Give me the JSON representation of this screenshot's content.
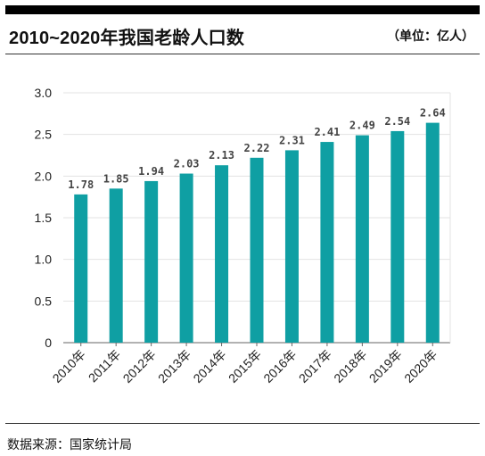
{
  "header": {
    "title": "2010~2020年我国老龄人口数",
    "unit": "（单位：亿人）"
  },
  "footer": {
    "source": "数据来源：国家统计局"
  },
  "colors": {
    "bar": "#0f9fa3",
    "grid": "#e3e3e3",
    "axis": "#666666"
  },
  "chart_data": {
    "type": "bar",
    "categories": [
      "2010年",
      "2011年",
      "2012年",
      "2013年",
      "2014年",
      "2015年",
      "2016年",
      "2017年",
      "2018年",
      "2019年",
      "2020年"
    ],
    "values": [
      1.78,
      1.85,
      1.94,
      2.03,
      2.13,
      2.22,
      2.31,
      2.41,
      2.49,
      2.54,
      2.64
    ],
    "title": "2010~2020年我国老龄人口数",
    "xlabel": "",
    "ylabel": "",
    "ylim": [
      0,
      3.0
    ],
    "yticks": [
      "0",
      "0.5",
      "1.0",
      "1.5",
      "2.0",
      "2.5",
      "3.0"
    ],
    "grid": true,
    "data_labels": true
  }
}
